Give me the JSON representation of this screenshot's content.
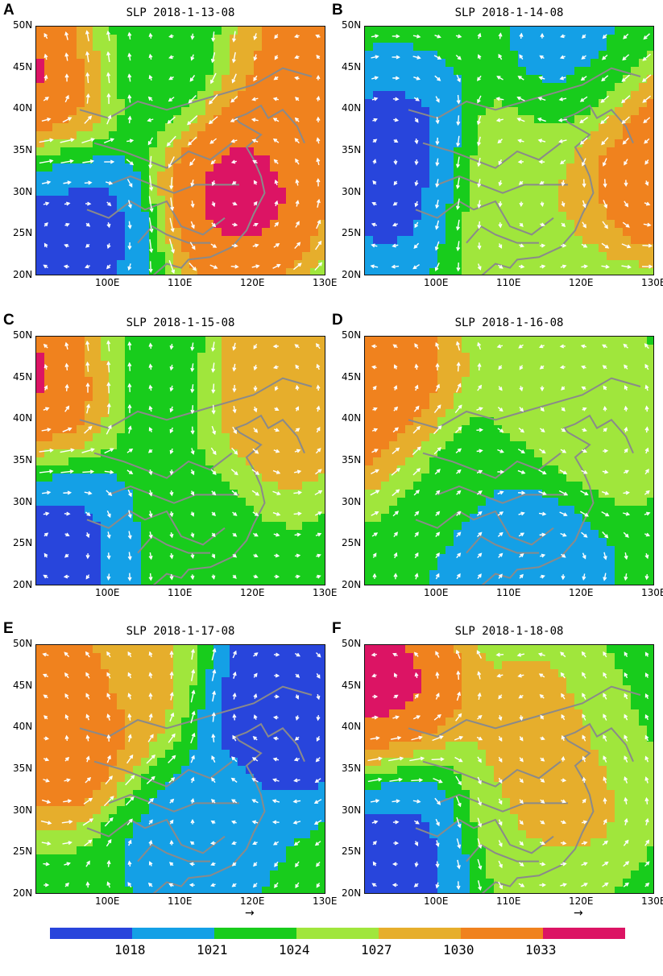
{
  "colorbar": {
    "colors": [
      "#2845dc",
      "#14a0e6",
      "#18cc1c",
      "#a0e63c",
      "#e6ae2c",
      "#f0821e",
      "#dc1464"
    ],
    "labels": [
      "1018",
      "1021",
      "1024",
      "1027",
      "1030",
      "1033"
    ]
  },
  "panels": [
    {
      "letter": "A",
      "title": "SLP  2018-1-13-08"
    },
    {
      "letter": "B",
      "title": "SLP  2018-1-14-08"
    },
    {
      "letter": "C",
      "title": "SLP  2018-1-15-08"
    },
    {
      "letter": "D",
      "title": "SLP  2018-1-16-08"
    },
    {
      "letter": "E",
      "title": "SLP  2018-1-17-08"
    },
    {
      "letter": "F",
      "title": "SLP  2018-1-18-08"
    }
  ],
  "axes": {
    "lat_ticks": [
      "50N",
      "45N",
      "40N",
      "35N",
      "30N",
      "25N",
      "20N"
    ],
    "lon_ticks": [
      "100E",
      "110E",
      "120E",
      "130E"
    ]
  },
  "chart_data": {
    "type": "heatmap",
    "variable": "SLP",
    "x_range": [
      90,
      130
    ],
    "y_range": [
      20,
      50
    ],
    "levels": [
      1018,
      1021,
      1024,
      1027,
      1030,
      1033
    ],
    "panels": [
      {
        "time": "2018-1-13-08",
        "centers": [
          {
            "lon": 92,
            "lat": 44,
            "value": 1034
          },
          {
            "lon": 118,
            "lat": 31,
            "value": 1034
          },
          {
            "lon": 127,
            "lat": 45,
            "value": 1031
          },
          {
            "lon": 95,
            "lat": 27,
            "value": 1017
          },
          {
            "lon": 105,
            "lat": 46,
            "value": 1021
          }
        ]
      },
      {
        "time": "2018-1-14-08",
        "centers": [
          {
            "lon": 129,
            "lat": 36,
            "value": 1034
          },
          {
            "lon": 94,
            "lat": 33,
            "value": 1017
          },
          {
            "lon": 112,
            "lat": 30,
            "value": 1027
          },
          {
            "lon": 121,
            "lat": 45,
            "value": 1020
          }
        ]
      },
      {
        "time": "2018-1-15-08",
        "centers": [
          {
            "lon": 93,
            "lat": 44,
            "value": 1034
          },
          {
            "lon": 95,
            "lat": 27,
            "value": 1017
          },
          {
            "lon": 110,
            "lat": 30,
            "value": 1023
          },
          {
            "lon": 121,
            "lat": 43,
            "value": 1030
          },
          {
            "lon": 106,
            "lat": 45,
            "value": 1021
          }
        ]
      },
      {
        "time": "2018-1-16-08",
        "centers": [
          {
            "lon": 110,
            "lat": 25,
            "value": 1017
          },
          {
            "lon": 118,
            "lat": 40,
            "value": 1026
          },
          {
            "lon": 91,
            "lat": 44,
            "value": 1032
          },
          {
            "lon": 105,
            "lat": 30,
            "value": 1023
          }
        ]
      },
      {
        "time": "2018-1-17-08",
        "centers": [
          {
            "lon": 95,
            "lat": 42,
            "value": 1034
          },
          {
            "lon": 112,
            "lat": 28,
            "value": 1020
          },
          {
            "lon": 122,
            "lat": 42,
            "value": 1016
          },
          {
            "lon": 103,
            "lat": 46,
            "value": 1028
          }
        ]
      },
      {
        "time": "2018-1-18-08",
        "centers": [
          {
            "lon": 92,
            "lat": 44,
            "value": 1034
          },
          {
            "lon": 118,
            "lat": 38,
            "value": 1030
          },
          {
            "lon": 95,
            "lat": 27,
            "value": 1017
          },
          {
            "lon": 112,
            "lat": 32,
            "value": 1027
          },
          {
            "lon": 126,
            "lat": 42,
            "value": 1023
          }
        ]
      }
    ]
  }
}
